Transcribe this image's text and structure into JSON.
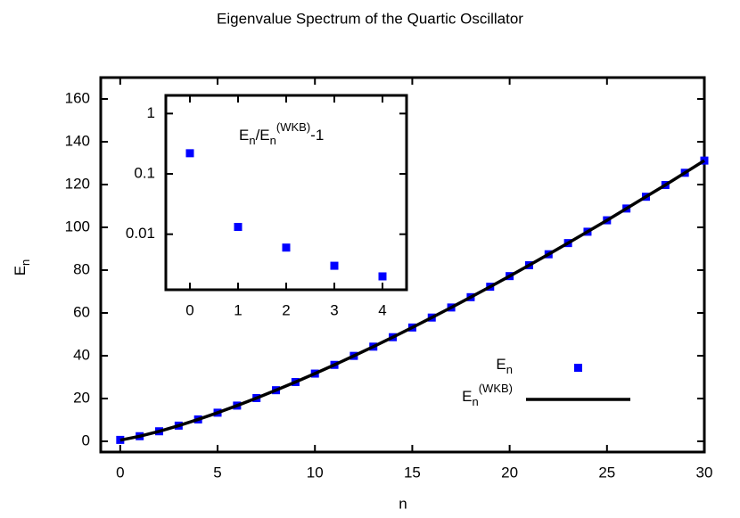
{
  "chart_data": [
    {
      "type": "scatter",
      "title": "Eigenvalue Spectrum of the Quartic Oscillator",
      "xlabel": "n",
      "ylabel": [
        {
          "text": "E"
        },
        {
          "text": "n",
          "shift": "sub"
        }
      ],
      "xlim": [
        -1,
        30
      ],
      "ylim": [
        -5,
        170
      ],
      "xticks": [
        0,
        5,
        10,
        15,
        20,
        25,
        30
      ],
      "yticks": [
        0,
        20,
        40,
        60,
        80,
        100,
        120,
        140,
        160
      ],
      "legend": "bottom right",
      "series": [
        {
          "name": [
            {
              "text": "E"
            },
            {
              "text": "n",
              "shift": "sub"
            }
          ],
          "color": "#0000ff",
          "style": "points",
          "x": [
            0,
            1,
            2,
            3,
            4,
            5,
            6,
            7,
            8,
            9,
            10,
            11,
            12,
            13,
            14,
            15,
            16,
            17,
            18,
            19,
            20,
            21,
            22,
            23,
            24,
            25,
            26,
            27,
            28,
            29,
            30
          ],
          "values": [
            0.668,
            2.394,
            4.697,
            7.336,
            10.24,
            13.38,
            16.7,
            20.21,
            23.89,
            27.7,
            31.65,
            35.73,
            39.94,
            44.25,
            48.67,
            53.2,
            57.84,
            62.55,
            67.37,
            72.24,
            77.22,
            82.29,
            87.42,
            92.65,
            97.95,
            103.3,
            108.8,
            114.3,
            119.8,
            125.5,
            131.2
          ]
        },
        {
          "name": [
            {
              "text": "E"
            },
            {
              "text": "n",
              "shift": "sub"
            },
            {
              "text": "(WKB)",
              "shift": "sup"
            }
          ],
          "color": "#000000",
          "style": "line",
          "x": [
            0,
            1,
            2,
            3,
            4,
            5,
            6,
            7,
            8,
            9,
            10,
            11,
            12,
            13,
            14,
            15,
            16,
            17,
            18,
            19,
            20,
            21,
            22,
            23,
            24,
            25,
            26,
            27,
            28,
            29,
            30
          ],
          "values": [
            0.546,
            2.364,
            4.67,
            7.315,
            10.24,
            13.37,
            16.7,
            20.21,
            23.89,
            27.7,
            31.65,
            35.73,
            39.94,
            44.25,
            48.67,
            53.2,
            57.84,
            62.55,
            67.37,
            72.24,
            77.22,
            82.29,
            87.42,
            92.65,
            97.95,
            103.3,
            108.8,
            114.3,
            119.8,
            125.5,
            131.2
          ]
        }
      ]
    },
    {
      "type": "scatter",
      "log_y": true,
      "annotation": [
        {
          "text": "E"
        },
        {
          "text": "n",
          "shift": "sub"
        },
        {
          "text": "/E"
        },
        {
          "text": "n",
          "shift": "sub"
        },
        {
          "text": "(WKB)",
          "shift": "sup"
        },
        {
          "text": "-1"
        }
      ],
      "xlim": [
        -0.5,
        4.5
      ],
      "ylim": [
        0.0012,
        2
      ],
      "xticks": [
        0,
        1,
        2,
        3,
        4
      ],
      "yticks": [
        1,
        0.1,
        0.01
      ],
      "series": [
        {
          "color": "#0000ff",
          "style": "points",
          "x": [
            0,
            1,
            2,
            3,
            4
          ],
          "values": [
            0.22,
            0.0132,
            0.006,
            0.003,
            0.002
          ]
        }
      ]
    }
  ]
}
